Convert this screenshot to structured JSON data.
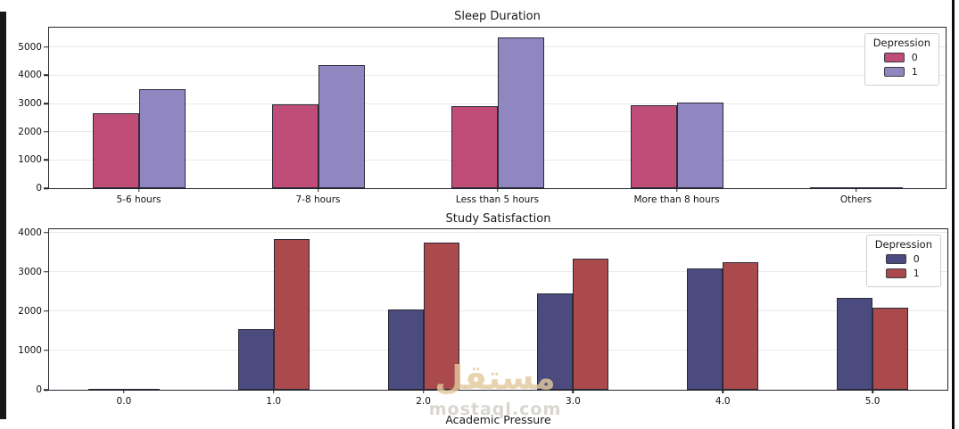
{
  "page": {
    "background": "#ffffff"
  },
  "decor": {
    "left_edge_bar_color": "#181818",
    "right_edge_line_color": "#0d0d0d"
  },
  "watermark": {
    "logo_text": "مستقل",
    "site_text": "mostaql.com",
    "logo_color": "#e2c99c",
    "site_color": "#cbc6be"
  },
  "chart_data": [
    {
      "type": "bar",
      "title": "Sleep Duration",
      "xlabel": "",
      "ylabel": "",
      "categories": [
        "5-6 hours",
        "7-8 hours",
        "Less than 5 hours",
        "More than 8 hours",
        "Others"
      ],
      "series": [
        {
          "name": "0",
          "color": "#c04d78",
          "values": [
            2640,
            2960,
            2920,
            2950,
            10
          ]
        },
        {
          "name": "1",
          "color": "#9087c1",
          "values": [
            3500,
            4375,
            5355,
            3040,
            8
          ]
        }
      ],
      "legend_title": "Depression",
      "legend_position": "upper right",
      "yticks": [
        0,
        1000,
        2000,
        3000,
        4000,
        5000
      ],
      "ylim": [
        0,
        5690
      ],
      "grid": true
    },
    {
      "type": "bar",
      "title": "Study Satisfaction",
      "xlabel": "Academic Pressure",
      "ylabel": "",
      "categories": [
        "0.0",
        "1.0",
        "2.0",
        "3.0",
        "4.0",
        "5.0"
      ],
      "series": [
        {
          "name": "0",
          "color": "#4c4b80",
          "values": [
            5,
            1550,
            2055,
            2465,
            3095,
            2330
          ]
        },
        {
          "name": "1",
          "color": "#ab4a4d",
          "values": [
            30,
            3840,
            3750,
            3350,
            3240,
            2085
          ]
        }
      ],
      "legend_title": "Depression",
      "legend_position": "upper right",
      "yticks": [
        0,
        1000,
        2000,
        3000,
        4000
      ],
      "ylim": [
        0,
        4090
      ],
      "grid": true
    }
  ]
}
